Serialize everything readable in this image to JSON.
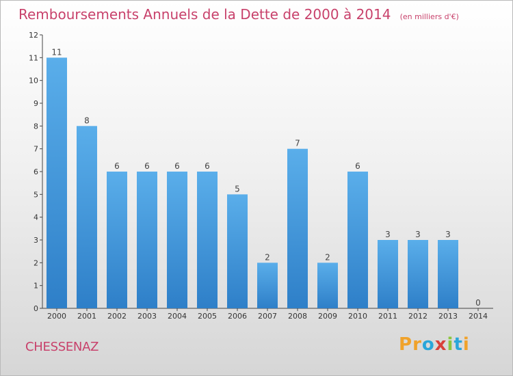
{
  "chart_data": {
    "type": "bar",
    "title": "Remboursements Annuels de la Dette de 2000 à 2014",
    "subtitle": "(en milliers d'€)",
    "categories": [
      "2000",
      "2001",
      "2002",
      "2003",
      "2004",
      "2005",
      "2006",
      "2007",
      "2008",
      "2009",
      "2010",
      "2011",
      "2012",
      "2013",
      "2014"
    ],
    "values": [
      11,
      8,
      6,
      6,
      6,
      6,
      5,
      2,
      7,
      2,
      6,
      3,
      3,
      3,
      0
    ],
    "ylim": [
      0,
      12
    ],
    "yticks": [
      "0",
      "1",
      "2",
      "3",
      "4",
      "5",
      "6",
      "7",
      "8",
      "9",
      "10",
      "11",
      "12"
    ],
    "grid": false,
    "bar_color": "#3a8dd6"
  },
  "footer": {
    "town": "CHESSENAZ",
    "brand_letters": [
      {
        "ch": "P",
        "color": "#f0a22a"
      },
      {
        "ch": "r",
        "color": "#f0a22a"
      },
      {
        "ch": "o",
        "color": "#2aa6d9"
      },
      {
        "ch": "x",
        "color": "#d8403a"
      },
      {
        "ch": "i",
        "color": "#8cc63e"
      },
      {
        "ch": "t",
        "color": "#2aa6d9"
      },
      {
        "ch": "i",
        "color": "#f0a22a"
      }
    ]
  }
}
